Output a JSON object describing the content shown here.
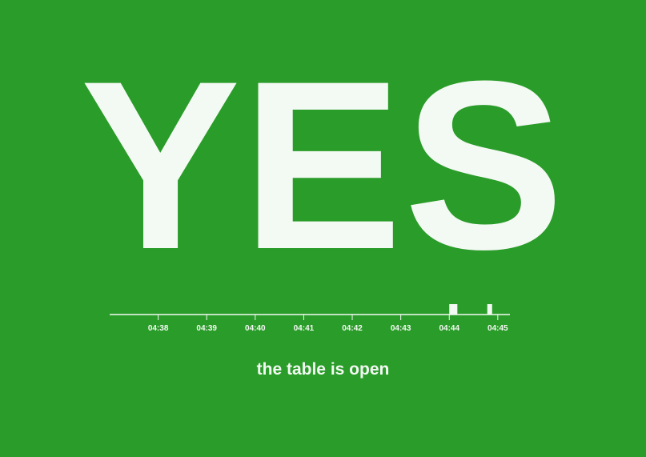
{
  "status_word": "YES",
  "caption": "the table is open",
  "colors": {
    "background": "#2a9c29",
    "foreground": "#f3f9f3"
  },
  "chart_data": {
    "type": "bar",
    "x_domain": [
      "04:37:00",
      "04:45:15"
    ],
    "ticks": [
      "04:38",
      "04:39",
      "04:40",
      "04:41",
      "04:42",
      "04:43",
      "04:44",
      "04:45"
    ],
    "events": [
      {
        "start": "04:44:00",
        "end": "04:44:10"
      },
      {
        "start": "04:44:47",
        "end": "04:44:53"
      }
    ]
  }
}
